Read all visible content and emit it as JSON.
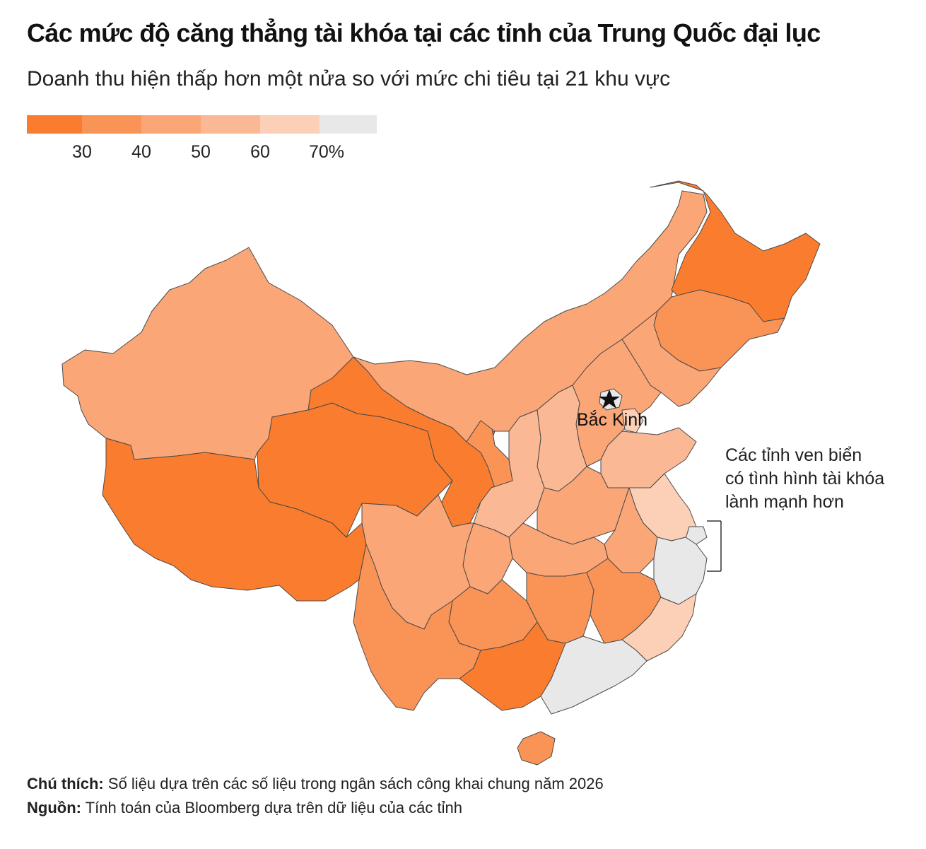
{
  "title": "Các mức độ căng thẳng tài khóa tại các tỉnh của Trung Quốc đại lục",
  "subtitle": "Doanh thu hiện thấp hơn một nửa so với mức chi tiêu tại 21 khu vực",
  "legend": {
    "colors": [
      "#fa7c2e",
      "#fa9456",
      "#fba676",
      "#fbb894",
      "#fcd0b6",
      "#e8e8e8"
    ],
    "ticks": [
      "30",
      "40",
      "50",
      "60",
      "70%"
    ]
  },
  "map": {
    "capital_label": "Bắc Kinh",
    "colors": {
      "c30": "#fa7c2e",
      "c40": "#fa9456",
      "c50": "#fba676",
      "c60": "#fbb894",
      "c70": "#fcd0b6",
      "c100": "#e8e8e8"
    },
    "regions": {
      "heilongjiang": "c30",
      "jilin": "c40",
      "liaoning": "c50",
      "inner_mongolia": "c50",
      "xinjiang": "c50",
      "tibet": "c30",
      "qinghai": "c30",
      "gansu": "c30",
      "ningxia": "c40",
      "shaanxi": "c60",
      "shanxi": "c60",
      "hebei": "c50",
      "beijing": "c100",
      "tianjin": "c70",
      "shandong": "c60",
      "henan": "c50",
      "jiangsu": "c70",
      "shanghai": "c100",
      "zhejiang": "c100",
      "anhui": "c50",
      "hubei": "c50",
      "chongqing": "c50",
      "sichuan": "c50",
      "hunan": "c40",
      "jiangxi": "c40",
      "fujian": "c70",
      "guangdong": "c100",
      "guangxi": "c30",
      "guizhou": "c40",
      "yunnan": "c40",
      "hainan": "c40"
    }
  },
  "annotation": {
    "lines": [
      "Các tỉnh ven biển",
      "có tình hình tài khóa",
      "lành mạnh hơn"
    ]
  },
  "footer": {
    "note_label": "Chú thích:",
    "note_text": "Số liệu dựa trên các số liệu trong ngân sách công khai chung năm 2026",
    "source_label": "Nguồn:",
    "source_text": "Tính toán của Bloomberg dựa trên dữ liệu của các tỉnh"
  }
}
